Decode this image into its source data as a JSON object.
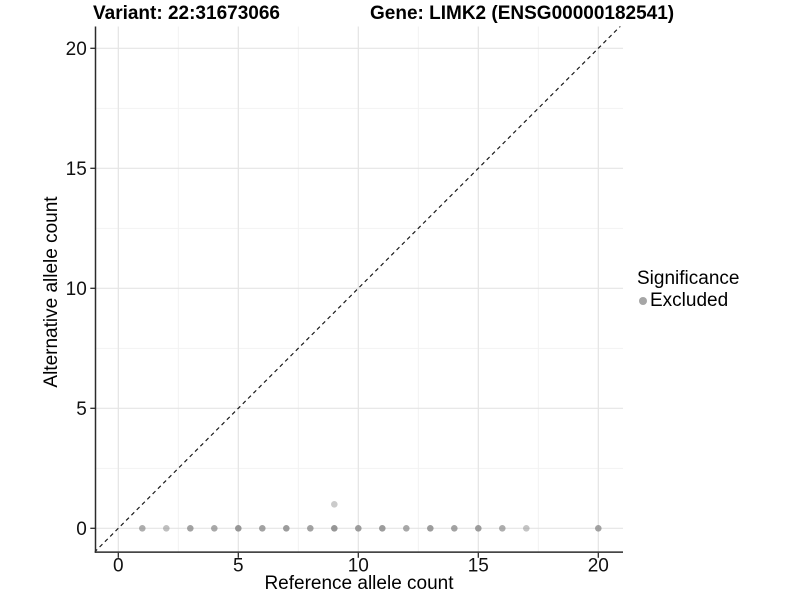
{
  "titles": {
    "variant": "Variant: 22:31673066",
    "gene": "Gene: LIMK2 (ENSG00000182541)"
  },
  "chart_data": {
    "type": "scatter",
    "title_left": "Variant: 22:31673066",
    "title_right": "Gene: LIMK2 (ENSG00000182541)",
    "xlabel": "Reference allele count",
    "ylabel": "Alternative allele count",
    "xlim": [
      -1,
      21
    ],
    "ylim": [
      -1,
      21
    ],
    "xticks": [
      0,
      5,
      10,
      15,
      20
    ],
    "yticks": [
      0,
      5,
      10,
      15,
      20
    ],
    "minor_xticks": [
      2.5,
      7.5,
      12.5,
      17.5
    ],
    "minor_yticks": [
      2.5,
      7.5,
      12.5,
      17.5
    ],
    "grid": "major+minor on white",
    "identity_line": {
      "equation": "y = x",
      "style": "dashed",
      "color": "#1a1a1a"
    },
    "point_color": "#8c8c8c",
    "series": [
      {
        "name": "Excluded",
        "points": [
          {
            "x": 1,
            "y": 0,
            "alpha": 0.7
          },
          {
            "x": 2,
            "y": 0,
            "alpha": 0.55
          },
          {
            "x": 3,
            "y": 0,
            "alpha": 0.8
          },
          {
            "x": 4,
            "y": 0,
            "alpha": 0.75
          },
          {
            "x": 5,
            "y": 0,
            "alpha": 0.9
          },
          {
            "x": 6,
            "y": 0,
            "alpha": 0.8
          },
          {
            "x": 7,
            "y": 0,
            "alpha": 0.85
          },
          {
            "x": 8,
            "y": 0,
            "alpha": 0.8
          },
          {
            "x": 9,
            "y": 0,
            "alpha": 0.9
          },
          {
            "x": 9,
            "y": 1,
            "alpha": 0.45
          },
          {
            "x": 10,
            "y": 0,
            "alpha": 0.85
          },
          {
            "x": 11,
            "y": 0,
            "alpha": 0.85
          },
          {
            "x": 12,
            "y": 0,
            "alpha": 0.75
          },
          {
            "x": 13,
            "y": 0,
            "alpha": 0.85
          },
          {
            "x": 14,
            "y": 0,
            "alpha": 0.8
          },
          {
            "x": 15,
            "y": 0,
            "alpha": 0.85
          },
          {
            "x": 16,
            "y": 0,
            "alpha": 0.7
          },
          {
            "x": 17,
            "y": 0,
            "alpha": 0.5
          },
          {
            "x": 20,
            "y": 0,
            "alpha": 0.8
          }
        ]
      }
    ],
    "legend": {
      "title": "Significance",
      "position": "right",
      "items": [
        {
          "label": "Excluded",
          "color": "#a6a6a6"
        }
      ]
    },
    "colors": {
      "background": "#ffffff",
      "axis_line": "#2b2b2b",
      "grid_major": "#e4e4e4",
      "grid_minor": "#f1f1f1",
      "tick_text": "#111111"
    }
  }
}
